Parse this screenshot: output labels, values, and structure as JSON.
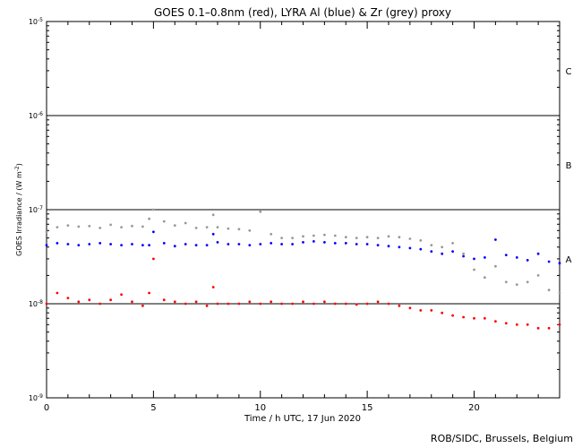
{
  "chart_data": {
    "type": "scatter",
    "title": "GOES 0.1–0.8nm (red), LYRA Al (blue) & Zr (grey) proxy",
    "xlabel": "Time / h UTC, 17 Jun 2020",
    "ylabel": "GOES Irradiance / (W m",
    "ylabel_sup": "-2",
    "ylabel_close": ")",
    "xlim": [
      0,
      24
    ],
    "ylim": [
      1e-09,
      1e-05
    ],
    "y_scale": "log",
    "x_ticks": [
      0,
      5,
      10,
      15,
      20
    ],
    "x_tick_labels": [
      "0",
      "5",
      "10",
      "15",
      "20"
    ],
    "y_ticks": [
      1e-09,
      1e-08,
      1e-07,
      1e-06,
      1e-05
    ],
    "y_tick_labels": [
      {
        "base": "10",
        "exp": "-9"
      },
      {
        "base": "10",
        "exp": "-8"
      },
      {
        "base": "10",
        "exp": "-7"
      },
      {
        "base": "10",
        "exp": "-6"
      },
      {
        "base": "10",
        "exp": "-5"
      }
    ],
    "class_lines": [
      1e-08,
      1e-07,
      1e-06
    ],
    "class_labels": [
      {
        "label": "A",
        "y": 3e-08
      },
      {
        "label": "B",
        "y": 3e-07
      },
      {
        "label": "C",
        "y": 3e-06
      }
    ],
    "series": [
      {
        "name": "GOES 0.1–0.8nm",
        "color": "#ff0000",
        "x": [
          0,
          0.5,
          1,
          1.5,
          2,
          2.5,
          3,
          3.5,
          4,
          4.5,
          4.8,
          5.0,
          5.5,
          6,
          6.5,
          7,
          7.5,
          7.8,
          8,
          8.5,
          9,
          9.5,
          10,
          10.5,
          11,
          11.5,
          12,
          12.5,
          13,
          13.5,
          14,
          14.5,
          15,
          15.5,
          16,
          16.5,
          17,
          17.5,
          18,
          18.5,
          19,
          19.5,
          20,
          20.5,
          21,
          21.5,
          22,
          22.5,
          23,
          23.5,
          24
        ],
        "y": [
          1e-08,
          1.3e-08,
          1.15e-08,
          1.05e-08,
          1.1e-08,
          1e-08,
          1.1e-08,
          1.25e-08,
          1.05e-08,
          9.5e-09,
          1.3e-08,
          3e-08,
          1.1e-08,
          1.05e-08,
          1e-08,
          1.05e-08,
          9.5e-09,
          1.5e-08,
          1e-08,
          1e-08,
          1e-08,
          1.05e-08,
          1e-08,
          1.05e-08,
          1e-08,
          1e-08,
          1.05e-08,
          1e-08,
          1.05e-08,
          1e-08,
          1e-08,
          9.8e-09,
          1e-08,
          1.05e-08,
          1e-08,
          9.5e-09,
          9e-09,
          8.5e-09,
          8.5e-09,
          8e-09,
          7.5e-09,
          7.2e-09,
          7e-09,
          7e-09,
          6.5e-09,
          6.2e-09,
          6e-09,
          6e-09,
          5.5e-09,
          5.5e-09,
          6e-09
        ]
      },
      {
        "name": "LYRA Al",
        "color": "#0000ff",
        "x": [
          0,
          0.5,
          1,
          1.5,
          2,
          2.5,
          3,
          3.5,
          4,
          4.5,
          4.8,
          5.0,
          5.5,
          6,
          6.5,
          7,
          7.5,
          7.8,
          8,
          8.5,
          9,
          9.5,
          10,
          10.5,
          11,
          11.5,
          12,
          12.5,
          13,
          13.5,
          14,
          14.5,
          15,
          15.5,
          16,
          16.5,
          17,
          17.5,
          18,
          18.5,
          19,
          19.5,
          20,
          20.5,
          21,
          21.5,
          22,
          22.5,
          23,
          23.5,
          24
        ],
        "y": [
          4.2e-08,
          4.4e-08,
          4.3e-08,
          4.2e-08,
          4.3e-08,
          4.4e-08,
          4.3e-08,
          4.2e-08,
          4.3e-08,
          4.2e-08,
          4.2e-08,
          5.8e-08,
          4.4e-08,
          4.1e-08,
          4.3e-08,
          4.2e-08,
          4.2e-08,
          5.5e-08,
          4.5e-08,
          4.3e-08,
          4.3e-08,
          4.2e-08,
          4.3e-08,
          4.4e-08,
          4.3e-08,
          4.3e-08,
          4.5e-08,
          4.6e-08,
          4.5e-08,
          4.4e-08,
          4.4e-08,
          4.3e-08,
          4.3e-08,
          4.2e-08,
          4.1e-08,
          4e-08,
          3.9e-08,
          3.8e-08,
          3.6e-08,
          3.4e-08,
          3.6e-08,
          3.2e-08,
          3e-08,
          3.1e-08,
          4.8e-08,
          3.3e-08,
          3.1e-08,
          2.9e-08,
          3.4e-08,
          2.8e-08,
          2.7e-08
        ]
      },
      {
        "name": "Zr",
        "color": "#999999",
        "x": [
          0,
          0.5,
          1,
          1.5,
          2,
          2.5,
          3,
          3.5,
          4,
          4.5,
          4.8,
          5.0,
          5.5,
          6,
          6.5,
          7,
          7.5,
          7.8,
          8,
          8.5,
          9,
          9.5,
          10,
          10.5,
          11,
          11.5,
          12,
          12.5,
          13,
          13.5,
          14,
          14.5,
          15,
          15.5,
          16,
          16.5,
          17,
          17.5,
          18,
          18.5,
          19,
          19.5,
          20,
          20.5,
          21,
          21.5,
          22,
          22.5,
          23,
          23.5,
          24
        ],
        "y": [
          5.8e-08,
          6.5e-08,
          6.8e-08,
          6.6e-08,
          6.7e-08,
          6.4e-08,
          6.9e-08,
          6.5e-08,
          6.7e-08,
          6.6e-08,
          8e-08,
          1e-07,
          7.5e-08,
          6.8e-08,
          7.2e-08,
          6.4e-08,
          6.5e-08,
          8.8e-08,
          6.5e-08,
          6.3e-08,
          6.2e-08,
          6e-08,
          9.5e-08,
          5.5e-08,
          5e-08,
          5e-08,
          5.2e-08,
          5.3e-08,
          5.4e-08,
          5.3e-08,
          5.1e-08,
          5e-08,
          5.1e-08,
          5e-08,
          5.2e-08,
          5.1e-08,
          4.9e-08,
          4.7e-08,
          4.2e-08,
          4e-08,
          4.4e-08,
          3.4e-08,
          2.3e-08,
          1.9e-08,
          2.5e-08,
          1.7e-08,
          1.6e-08,
          1.7e-08,
          2e-08,
          1.4e-08,
          1.3e-08
        ]
      }
    ]
  },
  "credit": "ROB/SIDC, Brussels, Belgium"
}
